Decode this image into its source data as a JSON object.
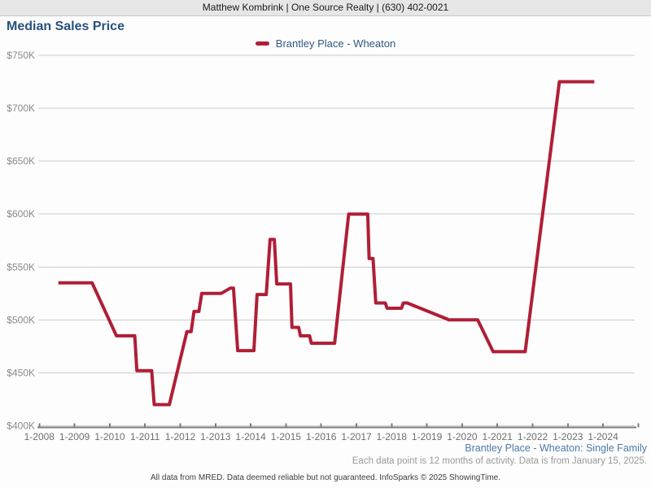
{
  "header": {
    "contact_line": "Matthew Kombrink | One Source Realty | (630) 402-0021"
  },
  "title": "Median Sales Price",
  "legend": {
    "label": "Brantley Place - Wheaton",
    "color": "#b01e36"
  },
  "footnotes": {
    "series_note": "Brantley Place - Wheaton: Single Family",
    "data_note": "Each data point is 12 months of activity. Data is from January 15, 2025.",
    "disclaimer": "All data from MRED. Data deemed reliable but not guaranteed. InfoSparks © 2025 ShowingTime."
  },
  "chart_data": {
    "type": "line",
    "title": "Median Sales Price",
    "xlabel": "",
    "ylabel": "",
    "grid": "horizontal",
    "legend_position": "top-center",
    "xlim": [
      2008,
      2025.1
    ],
    "ylim": [
      400000,
      750000
    ],
    "y_ticks": [
      {
        "value": 750000,
        "label": "$750K"
      },
      {
        "value": 700000,
        "label": "$700K"
      },
      {
        "value": 650000,
        "label": "$650K"
      },
      {
        "value": 600000,
        "label": "$600K"
      },
      {
        "value": 550000,
        "label": "$550K"
      },
      {
        "value": 500000,
        "label": "$500K"
      },
      {
        "value": 450000,
        "label": "$450K"
      },
      {
        "value": 400000,
        "label": "$400K"
      }
    ],
    "x_ticks": [
      {
        "year": 2008,
        "label": "1-2008"
      },
      {
        "year": 2009,
        "label": "1-2009"
      },
      {
        "year": 2010,
        "label": "1-2010"
      },
      {
        "year": 2011,
        "label": "1-2011"
      },
      {
        "year": 2012,
        "label": "1-2012"
      },
      {
        "year": 2013,
        "label": "1-2013"
      },
      {
        "year": 2014,
        "label": "1-2014"
      },
      {
        "year": 2015,
        "label": "1-2015"
      },
      {
        "year": 2016,
        "label": "1-2016"
      },
      {
        "year": 2017,
        "label": "1-2017"
      },
      {
        "year": 2018,
        "label": "1-2018"
      },
      {
        "year": 2019,
        "label": "1-2019"
      },
      {
        "year": 2020,
        "label": "1-2020"
      },
      {
        "year": 2021,
        "label": "1-2021"
      },
      {
        "year": 2022,
        "label": "1-2022"
      },
      {
        "year": 2023,
        "label": "1-2023"
      },
      {
        "year": 2024,
        "label": "1-2024"
      },
      {
        "year": 2025,
        "label": ""
      }
    ],
    "series": [
      {
        "name": "Brantley Place - Wheaton",
        "color": "#b01e36",
        "x_unit": "decimal_year",
        "y_unit": "USD",
        "points": [
          [
            2008.54,
            535000
          ],
          [
            2009.5,
            535000
          ],
          [
            2010.19,
            485000
          ],
          [
            2010.71,
            485000
          ],
          [
            2010.77,
            452000
          ],
          [
            2011.19,
            452000
          ],
          [
            2011.26,
            420000
          ],
          [
            2011.69,
            420000
          ],
          [
            2012.19,
            489000
          ],
          [
            2012.31,
            489000
          ],
          [
            2012.39,
            508000
          ],
          [
            2012.53,
            508000
          ],
          [
            2012.61,
            525000
          ],
          [
            2013.16,
            525000
          ],
          [
            2013.42,
            530000
          ],
          [
            2013.51,
            530000
          ],
          [
            2013.63,
            471000
          ],
          [
            2014.09,
            471000
          ],
          [
            2014.18,
            524000
          ],
          [
            2014.44,
            524000
          ],
          [
            2014.55,
            576000
          ],
          [
            2014.67,
            576000
          ],
          [
            2014.74,
            534000
          ],
          [
            2015.13,
            534000
          ],
          [
            2015.17,
            493000
          ],
          [
            2015.36,
            493000
          ],
          [
            2015.41,
            485000
          ],
          [
            2015.67,
            485000
          ],
          [
            2015.72,
            478000
          ],
          [
            2016.38,
            478000
          ],
          [
            2016.78,
            600000
          ],
          [
            2017.32,
            600000
          ],
          [
            2017.36,
            558000
          ],
          [
            2017.47,
            558000
          ],
          [
            2017.55,
            516000
          ],
          [
            2017.82,
            516000
          ],
          [
            2017.87,
            511000
          ],
          [
            2018.28,
            511000
          ],
          [
            2018.33,
            516000
          ],
          [
            2018.44,
            516000
          ],
          [
            2019.56,
            501000
          ],
          [
            2019.62,
            500000
          ],
          [
            2020.44,
            500000
          ],
          [
            2020.88,
            470000
          ],
          [
            2021.79,
            470000
          ],
          [
            2022.76,
            725000
          ],
          [
            2023.75,
            725000
          ]
        ]
      }
    ]
  }
}
